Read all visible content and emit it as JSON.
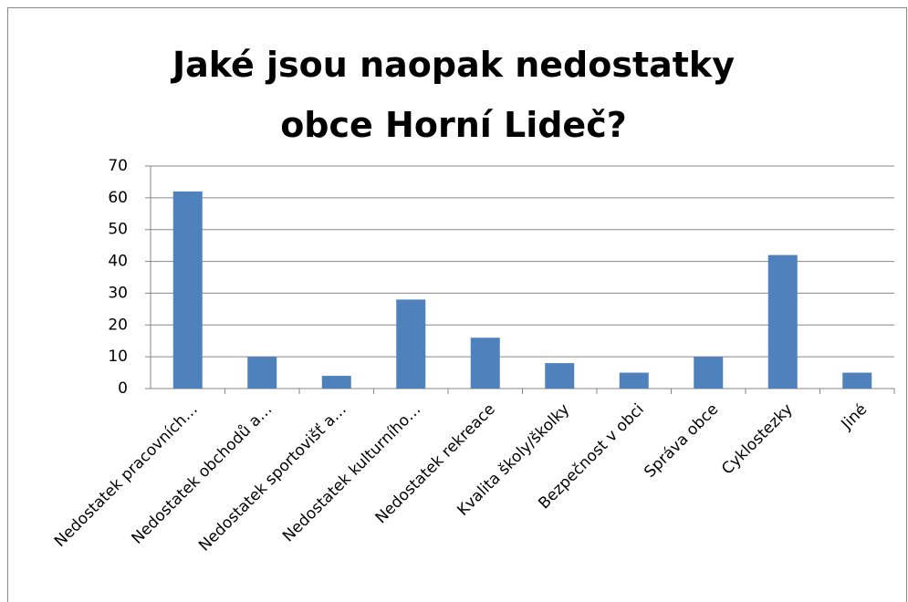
{
  "chart_data": {
    "type": "bar",
    "title": "Jaké jsou naopak nedostatky obce Horní Lideč?",
    "categories": [
      "Nedostatek pracovních…",
      "Nedostatek obchodů a…",
      "Nedostatek sportovišť a…",
      "Nedostatek kulturního…",
      "Nedostatek rekreace",
      "Kvalita školy/školky",
      "Bezpečnost v obci",
      "Správa obce",
      "Cyklostezky",
      "Jiné"
    ],
    "values": [
      62,
      10,
      4,
      28,
      16,
      8,
      5,
      10,
      42,
      5
    ],
    "color": "#4f81bd",
    "ylim": [
      0,
      70
    ],
    "yticks": [
      0,
      10,
      20,
      30,
      40,
      50,
      60,
      70
    ],
    "grid": true
  }
}
